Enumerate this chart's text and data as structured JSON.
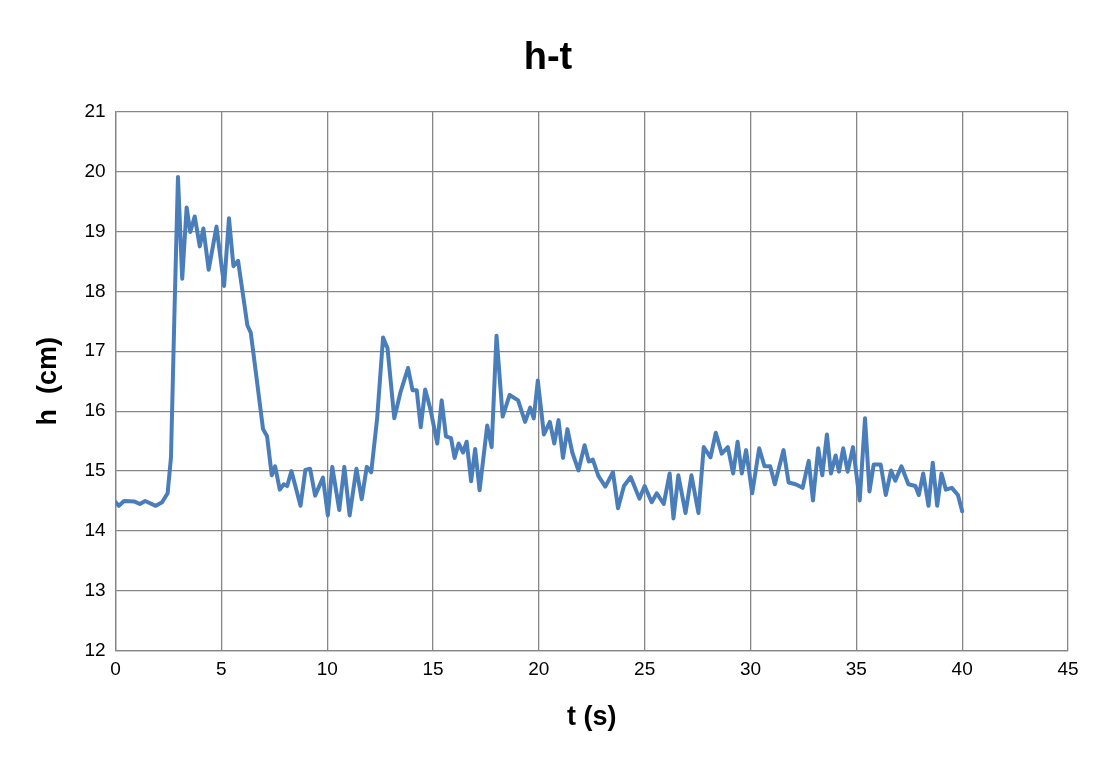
{
  "chart_data": {
    "type": "line",
    "title": "h-t",
    "xlabel": "t (s)",
    "ylabel": "h  (cm)",
    "x": [
      0,
      0.16,
      0.4,
      0.9,
      1.15,
      1.4,
      1.9,
      2.2,
      2.46,
      2.62,
      2.79,
      2.95,
      3.15,
      3.36,
      3.53,
      3.74,
      3.98,
      4.15,
      4.4,
      4.77,
      5.13,
      5.36,
      5.57,
      5.79,
      6.23,
      6.39,
      6.97,
      7.16,
      7.38,
      7.54,
      7.76,
      7.95,
      8.11,
      8.31,
      8.74,
      8.97,
      9.19,
      9.43,
      9.8,
      10.03,
      10.24,
      10.57,
      10.81,
      11.06,
      11.38,
      11.63,
      11.87,
      12.08,
      12.36,
      12.64,
      12.85,
      13.17,
      13.45,
      13.82,
      14.03,
      14.23,
      14.42,
      14.63,
      14.88,
      15.2,
      15.41,
      15.61,
      15.85,
      16.02,
      16.21,
      16.42,
      16.59,
      16.8,
      16.99,
      17.2,
      17.56,
      17.77,
      18.0,
      18.29,
      18.62,
      19.02,
      19.35,
      19.59,
      19.76,
      19.95,
      20.24,
      20.52,
      20.73,
      20.93,
      21.14,
      21.35,
      21.58,
      21.87,
      22.16,
      22.36,
      22.55,
      22.81,
      23.14,
      23.5,
      23.74,
      24.02,
      24.34,
      24.75,
      25.0,
      25.33,
      25.57,
      25.9,
      26.18,
      26.36,
      26.59,
      26.93,
      27.21,
      27.54,
      27.79,
      28.11,
      28.36,
      28.64,
      28.93,
      29.18,
      29.39,
      29.59,
      29.79,
      30.08,
      30.41,
      30.66,
      30.93,
      31.15,
      31.56,
      31.8,
      32.13,
      32.46,
      32.75,
      32.95,
      33.2,
      33.39,
      33.61,
      33.8,
      34.02,
      34.18,
      34.38,
      34.59,
      34.84,
      35.16,
      35.41,
      35.62,
      35.82,
      36.15,
      36.39,
      36.64,
      36.84,
      37.13,
      37.46,
      37.79,
      37.95,
      38.16,
      38.41,
      38.61,
      38.82,
      39.02,
      39.23,
      39.51,
      39.8,
      40.0
    ],
    "series": [
      {
        "color": "#4a7ebb",
        "values": [
          14.48,
          14.42,
          14.5,
          14.49,
          14.45,
          14.5,
          14.42,
          14.48,
          14.63,
          15.23,
          17.73,
          19.91,
          18.21,
          19.4,
          18.99,
          19.25,
          18.75,
          19.05,
          18.36,
          19.08,
          18.09,
          19.22,
          18.42,
          18.51,
          17.43,
          17.31,
          15.7,
          15.58,
          14.93,
          15.08,
          14.69,
          14.78,
          14.75,
          15.0,
          14.42,
          15.02,
          15.04,
          14.59,
          14.89,
          14.26,
          15.07,
          14.35,
          15.07,
          14.26,
          15.04,
          14.53,
          15.07,
          14.98,
          15.88,
          17.23,
          17.05,
          15.88,
          16.3,
          16.72,
          16.35,
          16.35,
          15.73,
          16.36,
          16.03,
          15.46,
          16.18,
          15.58,
          15.55,
          15.22,
          15.46,
          15.31,
          15.49,
          14.83,
          15.37,
          14.68,
          15.76,
          15.4,
          17.26,
          15.91,
          16.27,
          16.18,
          15.82,
          16.06,
          15.88,
          16.51,
          15.61,
          15.82,
          15.46,
          15.85,
          15.22,
          15.7,
          15.31,
          15.01,
          15.43,
          15.16,
          15.19,
          14.92,
          14.74,
          14.98,
          14.38,
          14.75,
          14.9,
          14.54,
          14.75,
          14.48,
          14.63,
          14.45,
          14.96,
          14.21,
          14.93,
          14.3,
          14.93,
          14.3,
          15.4,
          15.23,
          15.64,
          15.29,
          15.4,
          14.96,
          15.49,
          14.96,
          15.35,
          14.63,
          15.38,
          15.08,
          15.08,
          14.78,
          15.35,
          14.81,
          14.78,
          14.72,
          15.17,
          14.51,
          15.38,
          14.93,
          15.61,
          14.96,
          15.26,
          14.99,
          15.38,
          14.99,
          15.4,
          14.51,
          15.88,
          14.66,
          15.11,
          15.11,
          14.6,
          15.01,
          14.84,
          15.08,
          14.78,
          14.75,
          14.6,
          14.96,
          14.42,
          15.14,
          14.42,
          14.96,
          14.69,
          14.72,
          14.6,
          14.33
        ]
      }
    ],
    "xlim": [
      0,
      45
    ],
    "xticks": [
      0,
      5,
      10,
      15,
      20,
      25,
      30,
      35,
      40,
      45
    ],
    "ylim": [
      12,
      21
    ],
    "yticks": [
      12,
      13,
      14,
      15,
      16,
      17,
      18,
      19,
      20,
      21
    ],
    "grid": true,
    "legend": false,
    "marker": "none",
    "line_style": "solid"
  }
}
